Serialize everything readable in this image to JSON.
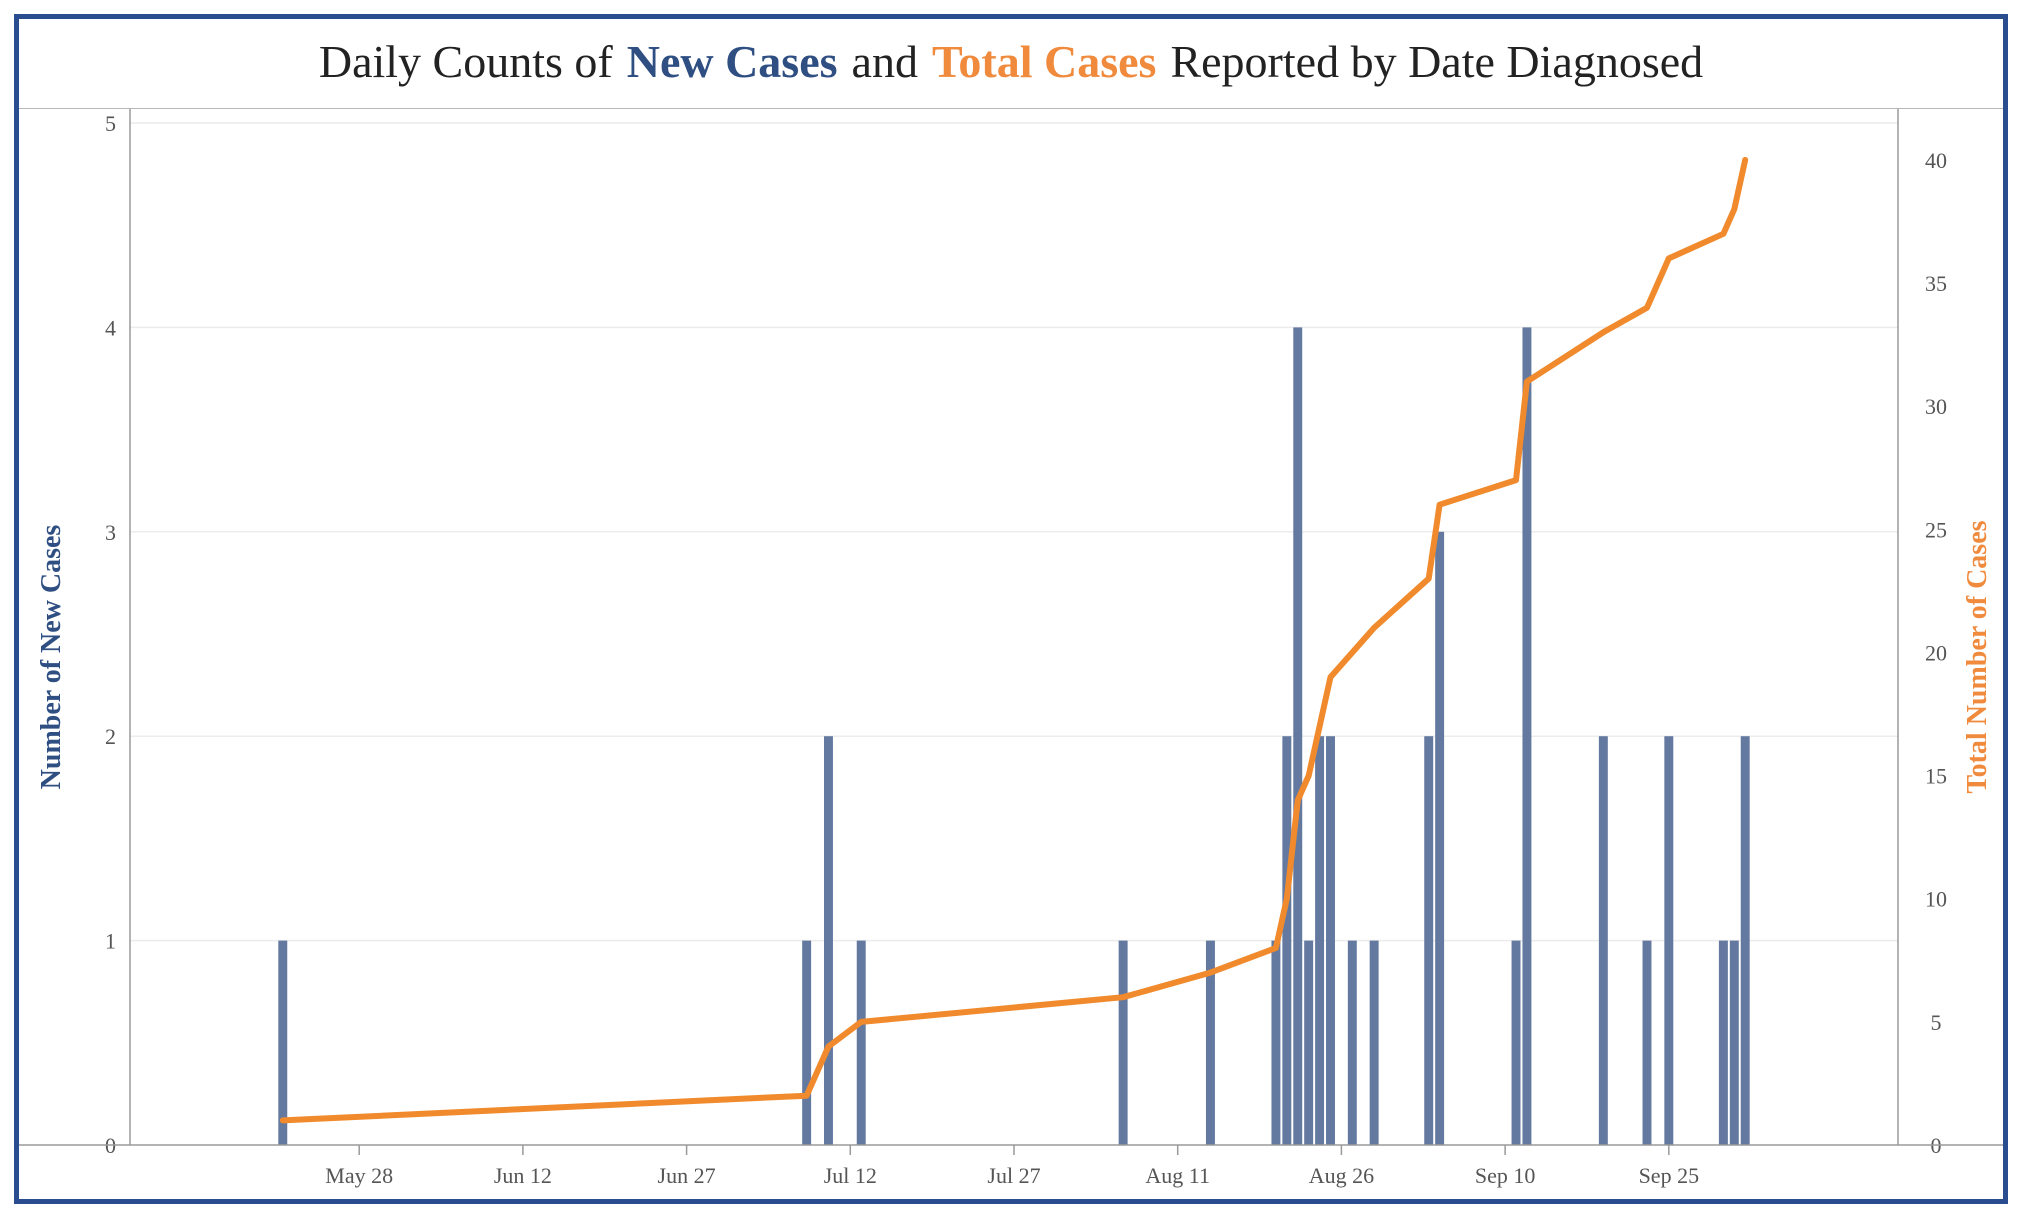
{
  "title": {
    "prefix": "Daily Counts of",
    "series1": "New Cases",
    "mid": "and",
    "series2": "Total Cases",
    "suffix": "Reported by Date Diagnosed"
  },
  "colors": {
    "frame": "#2a4d8f",
    "bar": "#6479a0",
    "line": "#f08a2c",
    "left_axis_label": "#2f4f83",
    "right_axis_label": "#f08a3c"
  },
  "chart_data": {
    "type": "bar",
    "title": "Daily Counts of New Cases and Total Cases Reported by Date Diagnosed",
    "xlabel": "",
    "ylabel": "Number of New Cases",
    "y2label": "Total Number of Cases",
    "x_tick_labels": [
      "May 28",
      "Jun 12",
      "Jun 27",
      "Jul 12",
      "Jul 27",
      "Aug 11",
      "Aug 26",
      "Sep 10",
      "Sep 25"
    ],
    "x_tick_days": [
      7,
      22,
      37,
      52,
      67,
      82,
      97,
      112,
      127
    ],
    "xlim_days": [
      -14,
      148
    ],
    "y_ticks": [
      0,
      1,
      2,
      3,
      4,
      5
    ],
    "ylim": [
      0,
      5
    ],
    "y2_ticks": [
      0,
      5,
      10,
      15,
      20,
      25,
      30,
      35,
      40
    ],
    "y2lim": [
      0,
      41.5
    ],
    "grid": true,
    "date_origin": "May 21",
    "series": [
      {
        "name": "New Cases",
        "type": "bar",
        "x_days": [
          0,
          48,
          50,
          53,
          77,
          85,
          91,
          92,
          93,
          94,
          95,
          96,
          98,
          100,
          105,
          106,
          113,
          114,
          121,
          125,
          127,
          132,
          133,
          134
        ],
        "values": [
          1,
          1,
          2,
          1,
          1,
          1,
          1,
          2,
          4,
          1,
          2,
          2,
          1,
          1,
          2,
          3,
          1,
          4,
          2,
          1,
          2,
          1,
          1,
          2
        ]
      },
      {
        "name": "Total Cases",
        "type": "line",
        "x_days": [
          0,
          48,
          50,
          53,
          77,
          85,
          91,
          92,
          93,
          94,
          95,
          96,
          98,
          100,
          105,
          106,
          113,
          114,
          121,
          125,
          127,
          132,
          133,
          134
        ],
        "values": [
          1,
          2,
          4,
          5,
          6,
          7,
          8,
          10,
          14,
          15,
          17,
          19,
          20,
          21,
          23,
          26,
          27,
          31,
          33,
          34,
          36,
          37,
          38,
          40
        ]
      }
    ]
  }
}
